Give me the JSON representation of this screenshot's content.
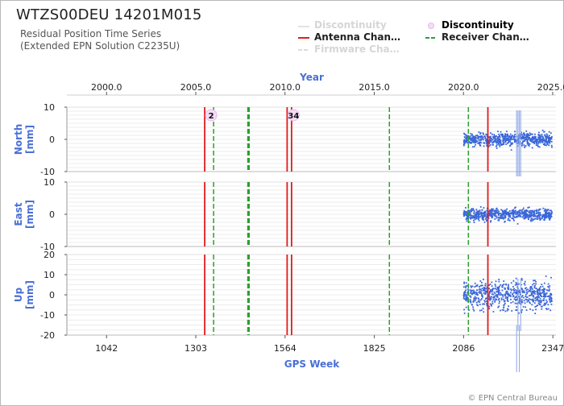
{
  "header": {
    "station": "WTZS00DEU 14201M015",
    "subtitle_line1": "Residual Position Time Series",
    "subtitle_line2": "(Extended EPN Solution C2235U)"
  },
  "legend": {
    "items": [
      {
        "label": "Discontinuity",
        "style": "line",
        "color": "#e3e3e3",
        "faded": true
      },
      {
        "label": "Discontinuity",
        "style": "marker",
        "color": "#e9b8ee",
        "faded": false
      },
      {
        "label": "Antenna Chan…",
        "style": "line",
        "color": "#e31a1c",
        "faded": false
      },
      {
        "label": "Receiver Chan…",
        "style": "dashed",
        "color": "#2ca02c",
        "faded": false
      },
      {
        "label": "Firmware Cha…",
        "style": "dashed",
        "color": "#dcdcdc",
        "faded": true
      }
    ]
  },
  "copyright": "© EPN Central Bureau",
  "chart_data": {
    "type": "scatter",
    "x_axis_top": {
      "label": "Year",
      "ticks": [
        2000.0,
        2005.0,
        2010.0,
        2015.0,
        2020.0,
        2025.0
      ],
      "tick_labels": [
        "2000.0",
        "2005.0",
        "2010.0",
        "2015.0",
        "2020.0",
        "2025.0"
      ]
    },
    "x_axis_bottom": {
      "label": "GPS Week",
      "ticks": [
        1042,
        1303,
        1564,
        1825,
        2086,
        2347
      ],
      "tick_labels": [
        "1042",
        "1303",
        "1564",
        "1825",
        "2086",
        "2347"
      ]
    },
    "xlim_gps_week": [
      926,
      2356
    ],
    "panels": [
      {
        "name": "North",
        "ylabel_line1": "North",
        "ylabel_line2": "[mm]",
        "ylim": [
          -10,
          10
        ],
        "ticks": [
          -10,
          0,
          10
        ]
      },
      {
        "name": "East",
        "ylabel_line1": "East",
        "ylabel_line2": "[mm]",
        "ylim": [
          -10,
          10
        ],
        "ticks": [
          -10,
          0,
          10
        ]
      },
      {
        "name": "Up",
        "ylabel_line1": "Up",
        "ylabel_line2": "[mm]",
        "ylim": [
          -20,
          20
        ],
        "ticks": [
          -20,
          -10,
          0,
          10,
          20
        ]
      }
    ],
    "series": [
      {
        "panel": "North",
        "x_start": 2086,
        "x_end": 2344,
        "mean": 0,
        "scatter": 1.5
      },
      {
        "panel": "East",
        "x_start": 2086,
        "x_end": 2344,
        "mean": 0,
        "scatter": 1.3
      },
      {
        "panel": "Up",
        "x_start": 2086,
        "x_end": 2344,
        "mean": 0,
        "scatter": 5.0
      }
    ],
    "discontinuity_labels": [
      {
        "week": 1329,
        "text": "2"
      },
      {
        "week": 1570,
        "text": "34"
      }
    ],
    "antenna_changes": [
      1329,
      1570,
      1583,
      2157
    ],
    "receiver_changes": [
      1355,
      1455,
      1457,
      1458,
      1459,
      1869,
      2100
    ],
    "outlier_spikes": [
      {
        "week": 2241,
        "ymin_mm": -45,
        "ymax_mm": -15
      },
      {
        "week": 2249,
        "ymin_mm": -45,
        "ymax_mm": -15
      },
      {
        "week": 2245,
        "ymin_mm": -18,
        "ymax_mm": 8
      },
      {
        "week": 2253,
        "ymin_mm": -18,
        "ymax_mm": 8
      }
    ],
    "colors": {
      "points": "#3a66d8",
      "antenna": "#e31a1c",
      "receiver": "#2ca02c",
      "discontinuity_marker": "#e9b8ee",
      "axis_label": "#4a6fd6",
      "grid": "#ececec"
    },
    "grid": true
  }
}
